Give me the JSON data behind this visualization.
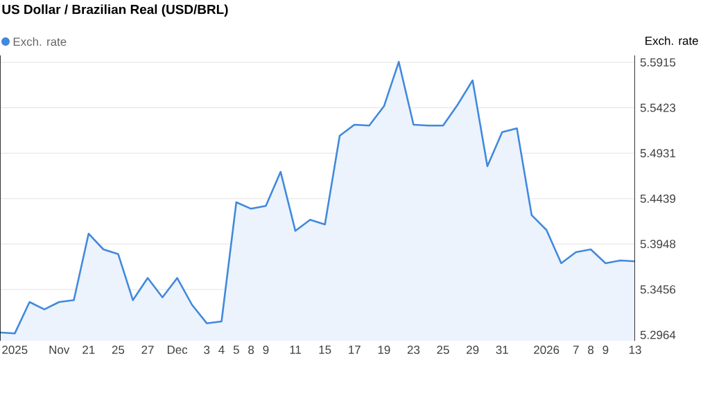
{
  "chart_data": {
    "type": "area",
    "title": "US Dollar / Brazilian Real (USD/BRL)",
    "ylabel": "Exch. rate",
    "categories": [
      null,
      "2025",
      null,
      null,
      "Nov",
      null,
      "21",
      null,
      "25",
      null,
      "27",
      null,
      "Dec",
      null,
      "3",
      "4",
      "5",
      "8",
      "9",
      null,
      "11",
      null,
      "15",
      null,
      "17",
      null,
      "19",
      null,
      "23",
      null,
      "25",
      null,
      "29",
      null,
      "31",
      null,
      null,
      "2026",
      null,
      "7",
      "8",
      "9",
      null,
      "13"
    ],
    "series": [
      {
        "name": "Exch. rate",
        "color": "#4189dd",
        "values": [
          5.299,
          5.298,
          5.332,
          5.324,
          5.332,
          5.334,
          5.406,
          5.389,
          5.384,
          5.334,
          5.358,
          5.337,
          5.358,
          5.329,
          5.309,
          5.311,
          5.44,
          5.433,
          5.436,
          5.473,
          5.409,
          5.421,
          5.416,
          5.512,
          5.524,
          5.523,
          5.544,
          5.592,
          5.524,
          5.523,
          5.523,
          5.546,
          5.572,
          5.479,
          5.516,
          5.52,
          5.426,
          5.41,
          5.374,
          5.386,
          5.389,
          5.374,
          5.377,
          5.376
        ]
      }
    ],
    "ylim": [
      5.29,
      5.599
    ],
    "yticks": [
      5.2964,
      5.3456,
      5.3948,
      5.4439,
      5.4931,
      5.5423,
      5.5915
    ],
    "grid": "y",
    "legend": "top left"
  }
}
